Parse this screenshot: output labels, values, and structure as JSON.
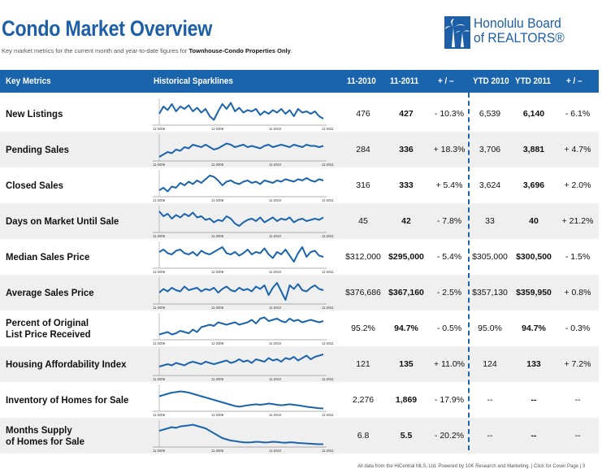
{
  "header": {
    "title": "Condo Market Overview",
    "subtitle_prefix": "Key market metrics for the current month and year-to-date figures for ",
    "subtitle_bold": "Townhouse-Condo Properties Only",
    "subtitle_suffix": ".",
    "logo_line1": "Honolulu Board",
    "logo_line2": "of REALTORS®"
  },
  "columns": {
    "metrics": "Key Metrics",
    "sparklines": "Historical Sparklines",
    "month_prev": "11-2010",
    "month_curr": "11-2011",
    "month_change": "+ / –",
    "ytd_prev": "YTD 2010",
    "ytd_curr": "YTD 2011",
    "ytd_change": "+ / –"
  },
  "spark_axis": [
    "11-2006",
    "11-2008",
    "11-2010",
    "11-2011"
  ],
  "rows": [
    {
      "label": "New Listings",
      "m_prev": "476",
      "m_curr": "427",
      "m_chg": "- 10.3%",
      "y_prev": "6,539",
      "y_curr": "6,140",
      "y_chg": "- 6.1%",
      "spark": [
        0.4,
        0.7,
        0.55,
        0.8,
        0.5,
        0.7,
        0.6,
        0.75,
        0.5,
        0.65,
        0.45,
        0.6,
        0.3,
        0.15,
        0.5,
        0.8,
        0.6,
        0.85,
        0.5,
        0.65,
        0.45,
        0.55,
        0.5,
        0.6,
        0.35,
        0.5,
        0.4,
        0.55,
        0.45,
        0.6,
        0.4,
        0.55,
        0.3,
        0.6,
        0.45,
        0.5,
        0.4,
        0.5,
        0.3,
        0.2
      ]
    },
    {
      "label": "Pending Sales",
      "m_prev": "284",
      "m_curr": "336",
      "m_chg": "+ 18.3%",
      "y_prev": "3,706",
      "y_curr": "3,881",
      "y_chg": "+ 4.7%",
      "spark": [
        0.1,
        0.2,
        0.3,
        0.25,
        0.4,
        0.35,
        0.5,
        0.45,
        0.6,
        0.55,
        0.5,
        0.6,
        0.5,
        0.4,
        0.45,
        0.55,
        0.65,
        0.6,
        0.5,
        0.55,
        0.6,
        0.5,
        0.55,
        0.5,
        0.45,
        0.55,
        0.6,
        0.5,
        0.55,
        0.6,
        0.55,
        0.5,
        0.6,
        0.55,
        0.5,
        0.6,
        0.55,
        0.55,
        0.5,
        0.55
      ]
    },
    {
      "label": "Closed Sales",
      "m_prev": "316",
      "m_curr": "333",
      "m_chg": "+ 5.4%",
      "y_prev": "3,624",
      "y_curr": "3,696",
      "y_chg": "+ 2.0%",
      "spark": [
        0.2,
        0.3,
        0.15,
        0.35,
        0.3,
        0.5,
        0.4,
        0.55,
        0.45,
        0.6,
        0.5,
        0.65,
        0.8,
        0.75,
        0.6,
        0.4,
        0.55,
        0.6,
        0.5,
        0.45,
        0.55,
        0.6,
        0.5,
        0.55,
        0.45,
        0.6,
        0.55,
        0.5,
        0.6,
        0.55,
        0.65,
        0.6,
        0.55,
        0.65,
        0.6,
        0.7,
        0.6,
        0.55,
        0.65,
        0.6
      ]
    },
    {
      "label": "Days on Market Until Sale",
      "m_prev": "45",
      "m_curr": "42",
      "m_chg": "- 7.8%",
      "y_prev": "33",
      "y_curr": "40",
      "y_chg": "+ 21.2%",
      "spark": [
        0.8,
        0.6,
        0.7,
        0.5,
        0.65,
        0.55,
        0.7,
        0.6,
        0.75,
        0.55,
        0.6,
        0.45,
        0.5,
        0.35,
        0.45,
        0.4,
        0.6,
        0.5,
        0.3,
        0.2,
        0.35,
        0.45,
        0.5,
        0.4,
        0.55,
        0.35,
        0.45,
        0.55,
        0.4,
        0.5,
        0.45,
        0.55,
        0.35,
        0.45,
        0.5,
        0.4,
        0.45,
        0.5,
        0.45,
        0.55
      ]
    },
    {
      "label": "Median Sales Price",
      "m_prev": "$312,000",
      "m_curr": "$295,000",
      "m_chg": "- 5.4%",
      "y_prev": "$305,000",
      "y_curr": "$300,500",
      "y_chg": "- 1.5%",
      "spark": [
        0.6,
        0.7,
        0.55,
        0.5,
        0.65,
        0.7,
        0.55,
        0.5,
        0.6,
        0.45,
        0.65,
        0.55,
        0.5,
        0.6,
        0.7,
        0.8,
        0.55,
        0.5,
        0.6,
        0.45,
        0.55,
        0.7,
        0.5,
        0.6,
        0.55,
        0.75,
        0.5,
        0.35,
        0.6,
        0.5,
        0.7,
        0.45,
        0.2,
        0.55,
        0.8,
        0.4,
        0.6,
        0.65,
        0.45,
        0.4
      ]
    },
    {
      "label": "Average Sales Price",
      "m_prev": "$376,686",
      "m_curr": "$367,160",
      "m_chg": "- 2.5%",
      "y_prev": "$357,130",
      "y_curr": "$359,950",
      "y_chg": "+ 0.8%",
      "spark": [
        0.4,
        0.55,
        0.45,
        0.6,
        0.5,
        0.45,
        0.65,
        0.5,
        0.55,
        0.6,
        0.45,
        0.55,
        0.5,
        0.6,
        0.4,
        0.55,
        0.65,
        0.5,
        0.45,
        0.6,
        0.5,
        0.55,
        0.45,
        0.65,
        0.55,
        0.7,
        0.3,
        0.6,
        0.8,
        0.45,
        0.1,
        0.7,
        0.55,
        0.75,
        0.5,
        0.45,
        0.6,
        0.7,
        0.55,
        0.5
      ]
    },
    {
      "label": "Percent of Original\nList Price Received",
      "m_prev": "95.2%",
      "m_curr": "94.7%",
      "m_chg": "- 0.5%",
      "y_prev": "95.0%",
      "y_curr": "94.7%",
      "y_chg": "- 0.3%",
      "spark": [
        0.15,
        0.2,
        0.25,
        0.15,
        0.2,
        0.3,
        0.25,
        0.2,
        0.35,
        0.25,
        0.45,
        0.5,
        0.55,
        0.5,
        0.65,
        0.6,
        0.55,
        0.6,
        0.65,
        0.55,
        0.6,
        0.65,
        0.75,
        0.6,
        0.8,
        0.85,
        0.7,
        0.75,
        0.8,
        0.7,
        0.65,
        0.8,
        0.7,
        0.75,
        0.65,
        0.7,
        0.75,
        0.7,
        0.65,
        0.7
      ]
    },
    {
      "label": "Housing Affordability Index",
      "m_prev": "121",
      "m_curr": "135",
      "m_chg": "+ 11.0%",
      "y_prev": "124",
      "y_curr": "133",
      "y_chg": "+ 7.2%",
      "spark": [
        0.3,
        0.35,
        0.4,
        0.35,
        0.45,
        0.4,
        0.35,
        0.45,
        0.5,
        0.45,
        0.4,
        0.5,
        0.45,
        0.4,
        0.45,
        0.5,
        0.55,
        0.45,
        0.5,
        0.6,
        0.5,
        0.55,
        0.45,
        0.6,
        0.55,
        0.5,
        0.65,
        0.55,
        0.6,
        0.5,
        0.65,
        0.6,
        0.7,
        0.55,
        0.65,
        0.75,
        0.6,
        0.7,
        0.75,
        0.8
      ]
    },
    {
      "label": "Inventory of Homes for Sale",
      "m_prev": "2,276",
      "m_curr": "1,869",
      "m_chg": "- 17.9%",
      "y_prev": "--",
      "y_curr": "--",
      "y_chg": "--",
      "spark": [
        0.55,
        0.6,
        0.65,
        0.7,
        0.72,
        0.75,
        0.73,
        0.7,
        0.65,
        0.6,
        0.55,
        0.5,
        0.45,
        0.4,
        0.35,
        0.3,
        0.25,
        0.2,
        0.15,
        0.12,
        0.15,
        0.18,
        0.2,
        0.22,
        0.2,
        0.22,
        0.25,
        0.23,
        0.2,
        0.18,
        0.2,
        0.22,
        0.2,
        0.18,
        0.15,
        0.12,
        0.1,
        0.08,
        0.06,
        0.05
      ]
    },
    {
      "label": "Months Supply\nof Homes for Sale",
      "m_prev": "6.8",
      "m_curr": "5.5",
      "m_chg": "- 20.2%",
      "y_prev": "--",
      "y_curr": "--",
      "y_chg": "--",
      "spark": [
        0.6,
        0.65,
        0.7,
        0.75,
        0.72,
        0.78,
        0.8,
        0.82,
        0.85,
        0.8,
        0.75,
        0.7,
        0.6,
        0.5,
        0.4,
        0.3,
        0.25,
        0.2,
        0.18,
        0.15,
        0.13,
        0.12,
        0.13,
        0.15,
        0.14,
        0.12,
        0.13,
        0.15,
        0.14,
        0.12,
        0.11,
        0.13,
        0.12,
        0.1,
        0.09,
        0.08,
        0.07,
        0.06,
        0.05,
        0.05
      ]
    }
  ],
  "footer": "All data from the HiCentral MLS, Ltd. Powered by 10K Research and Marketing.  |  Click for Cover Page  |  3",
  "colors": {
    "accent": "#1a64ad",
    "title": "#1d5fa6",
    "alt_row": "#efefef"
  }
}
